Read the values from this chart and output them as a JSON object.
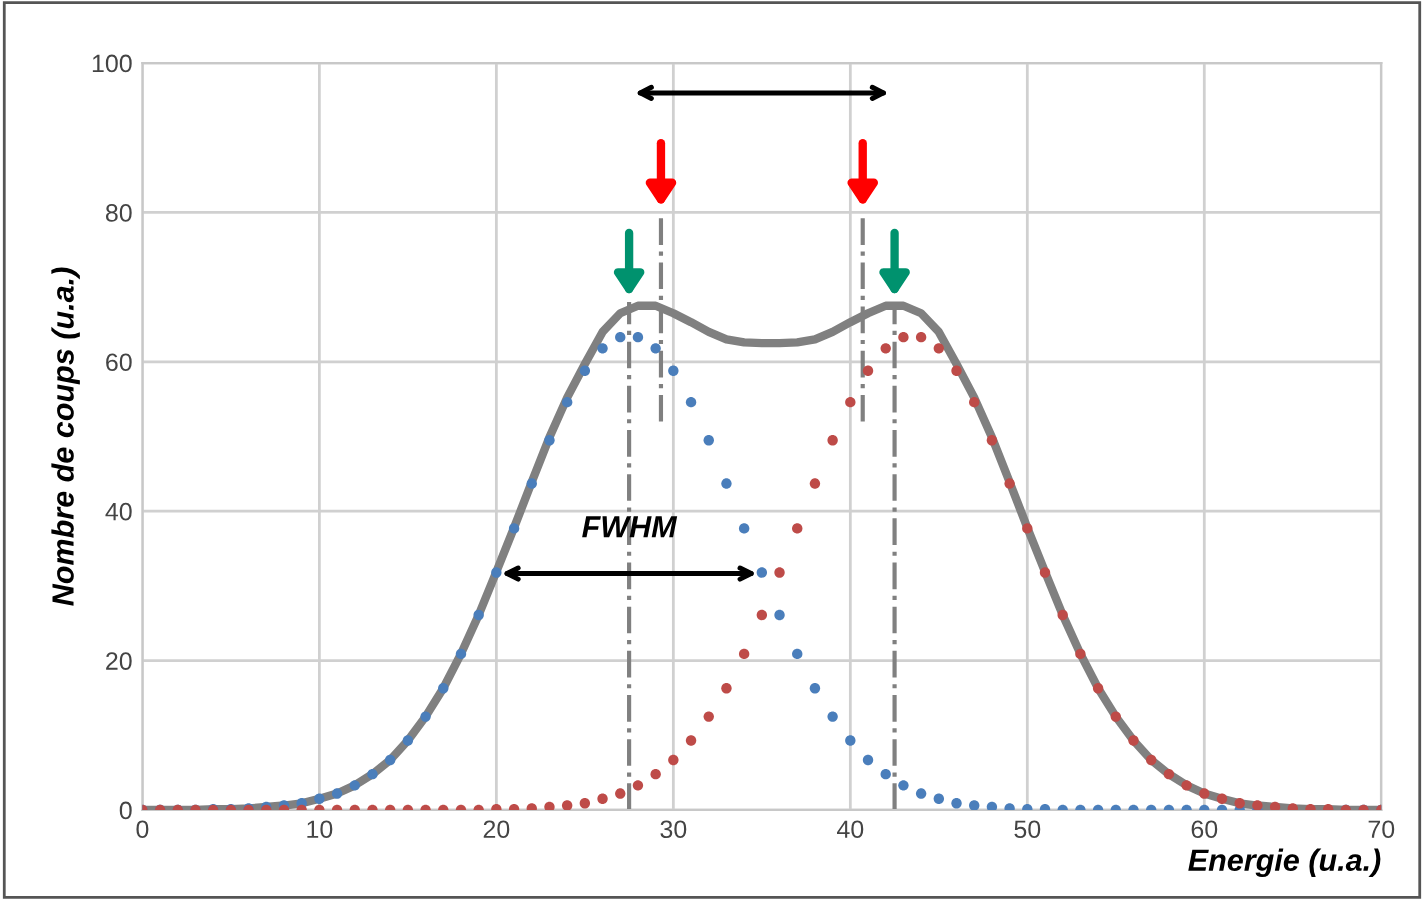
{
  "chart_data": {
    "type": "scatter",
    "xlabel": "Energie (u.a.)",
    "ylabel": "Nombre de coups (u.a.)",
    "x": [
      0,
      1,
      2,
      3,
      4,
      5,
      6,
      7,
      8,
      9,
      10,
      11,
      12,
      13,
      14,
      15,
      16,
      17,
      18,
      19,
      20,
      21,
      22,
      23,
      24,
      25,
      26,
      27,
      28,
      29,
      30,
      31,
      32,
      33,
      34,
      35,
      36,
      37,
      38,
      39,
      40,
      41,
      42,
      43,
      44,
      45,
      46,
      47,
      48,
      49,
      50,
      51,
      52,
      53,
      54,
      55,
      56,
      57,
      58,
      59,
      60,
      61,
      62,
      63,
      64,
      65,
      66,
      67,
      68,
      69,
      70
    ],
    "series": [
      {
        "color": "#4a7ebb",
        "marker": "circle",
        "values": [
          0,
          0,
          0,
          0,
          0.1,
          0.1,
          0.2,
          0.4,
          0.6,
          0.9,
          1.5,
          2.2,
          3.3,
          4.8,
          6.7,
          9.3,
          12.5,
          16.3,
          20.9,
          26.1,
          31.8,
          37.7,
          43.7,
          49.5,
          54.6,
          58.8,
          61.8,
          63.3,
          63.3,
          61.8,
          58.8,
          54.6,
          49.5,
          43.7,
          37.7,
          31.8,
          26.1,
          20.9,
          16.3,
          12.5,
          9.3,
          6.7,
          4.8,
          3.3,
          2.2,
          1.5,
          0.9,
          0.6,
          0.4,
          0.2,
          0.1,
          0.1,
          0,
          0,
          0,
          0,
          0,
          0,
          0,
          0,
          0,
          0,
          0,
          0,
          null,
          null,
          null,
          null,
          0,
          0,
          0
        ]
      },
      {
        "color": "#be4b48",
        "marker": "circle",
        "values": [
          0,
          0,
          0,
          0,
          0,
          0,
          0,
          0,
          0,
          0,
          0,
          0,
          0,
          0,
          0,
          0,
          0,
          0,
          0,
          0,
          0.1,
          0.1,
          0.2,
          0.4,
          0.6,
          0.9,
          1.5,
          2.2,
          3.3,
          4.8,
          6.7,
          9.3,
          12.5,
          16.3,
          20.9,
          26.1,
          31.8,
          37.7,
          43.7,
          49.5,
          54.6,
          58.8,
          61.8,
          63.3,
          63.3,
          61.8,
          58.8,
          54.6,
          49.5,
          43.7,
          37.7,
          31.8,
          26.1,
          20.9,
          16.3,
          12.5,
          9.3,
          6.7,
          4.8,
          3.3,
          2.2,
          1.5,
          0.9,
          0.6,
          0.4,
          0.2,
          0.1,
          0.1,
          0,
          0,
          0
        ]
      },
      {
        "type": "line",
        "color": "#808080",
        "values": [
          0,
          0,
          0,
          0,
          0.1,
          0.1,
          0.2,
          0.4,
          0.6,
          0.9,
          1.5,
          2.2,
          3.3,
          4.8,
          6.7,
          9.3,
          12.5,
          16.3,
          20.9,
          26.1,
          31.9,
          37.8,
          43.9,
          49.9,
          55.2,
          59.7,
          64,
          66.5,
          67.5,
          67.5,
          66.5,
          65.3,
          64,
          63,
          62.6,
          62.5,
          62.5,
          62.6,
          63,
          64,
          65.3,
          66.5,
          67.5,
          67.5,
          66.5,
          64,
          59.7,
          55.2,
          49.9,
          43.9,
          37.8,
          31.9,
          26.1,
          20.9,
          16.3,
          12.5,
          9.3,
          6.7,
          4.8,
          3.3,
          2.2,
          1.5,
          0.9,
          0.6,
          0.4,
          0.2,
          0.1,
          0.1,
          0,
          0,
          0
        ]
      }
    ],
    "xlim": [
      0,
      70
    ],
    "xticks": [
      0,
      10,
      20,
      30,
      40,
      50,
      60,
      70
    ],
    "ylim": [
      0,
      100
    ],
    "yticks": [
      0,
      20,
      40,
      60,
      80,
      100
    ],
    "grid": true,
    "ref_lines": [
      {
        "axis": "x",
        "value": 27.5,
        "color": "#808080",
        "line_style": "dashdot"
      },
      {
        "axis": "x",
        "value": 29.3,
        "color": "#808080",
        "line_style": "dashdot"
      },
      {
        "axis": "x",
        "value": 40.7,
        "color": "#808080",
        "line_style": "dashdot"
      },
      {
        "axis": "x",
        "value": 42.5,
        "color": "#808080",
        "line_style": "dashdot"
      }
    ],
    "annotations": [
      "FWHM"
    ]
  }
}
